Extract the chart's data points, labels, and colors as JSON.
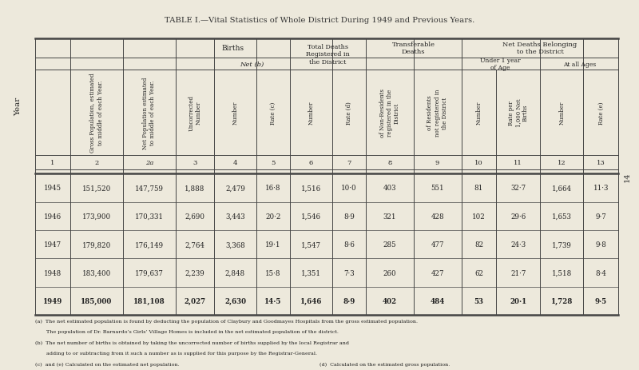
{
  "title": "TABLE I.—Vital Statistics of Whole District During 1949 and Previous Years.",
  "background_color": "#ede9dc",
  "col_headers_rotated": [
    "Gross Population, estimated\nto middle of each Year.",
    "Net Population estimated\nto middle of each Year.",
    "Uncorrected\nNumber",
    "Number",
    "Rate (c)",
    "Number",
    "Rate (d)",
    "of Non-Residents\nregistered in the\nDistrict",
    "of Residents\nnot registered in\nthe District",
    "Number",
    "Rate per\n1,000 Net\nBirths",
    "Number",
    "Rate (e)"
  ],
  "col_numbers": [
    "1",
    "2",
    "2a",
    "3",
    "4",
    "5",
    "6",
    "7",
    "8",
    "9",
    "10",
    "11",
    "12",
    "13"
  ],
  "data": [
    [
      "1945",
      "151,520",
      "147,759",
      "1,888",
      "2,479",
      "16·8",
      "1,516",
      "10·0",
      "403",
      "551",
      "81",
      "32·7",
      "1,664",
      "11·3"
    ],
    [
      "1946",
      "173,900",
      "170,331",
      "2,690",
      "3,443",
      "20·2",
      "1,546",
      "8·9",
      "321",
      "428",
      "102",
      "29·6",
      "1,653",
      "9·7"
    ],
    [
      "1947",
      "179,820",
      "176,149",
      "2,764",
      "3,368",
      "19·1",
      "1,547",
      "8·6",
      "285",
      "477",
      "82",
      "24·3",
      "1,739",
      "9·8"
    ],
    [
      "1948",
      "183,400",
      "179,637",
      "2,239",
      "2,848",
      "15·8",
      "1,351",
      "7·3",
      "260",
      "427",
      "62",
      "21·7",
      "1,518",
      "8·4"
    ],
    [
      "1949",
      "185,000",
      "181,108",
      "2,027",
      "2,630",
      "14·5",
      "1,646",
      "8·9",
      "402",
      "484",
      "53",
      "20·1",
      "1,728",
      "9·5"
    ]
  ],
  "footnote_a": "(a)  The net estimated population is found by deducting the population of Claybury and Goodmayes Hospitals from the gross estimated population.   The population of Dr. Barnardo’s Girls’ Village Homes is included in the net estimated population of the district.",
  "footnote_b": "(b)  The net number of births is obtained by taking the uncorrected number of births supplied by the local Registrar and adding to or subtracting from it such a number as is supplied for this purpose by the Registrar-General.",
  "footnote_c": "(c)  and (e) Calculated on the estimated net population.",
  "footnote_d": "(d)  Calculated on the estimated gross population.",
  "page_number": "14"
}
